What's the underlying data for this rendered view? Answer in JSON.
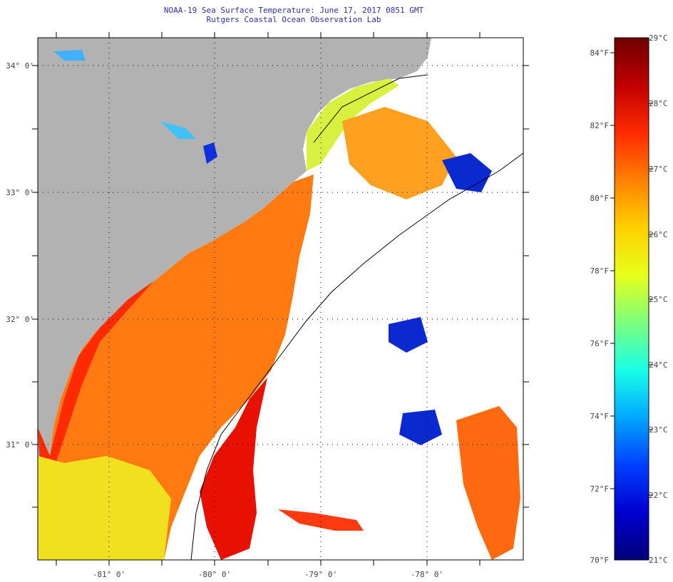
{
  "title": {
    "line1": "NOAA-19 Sea Surface Temperature:  June 17, 2017 0851 GMT",
    "line2": "Rutgers Coastal Ocean Observation Lab"
  },
  "map": {
    "lat_labels": [
      "34° 0'",
      "33° 0'",
      "32° 0'",
      "31° 0'"
    ],
    "lon_labels": [
      "-81° 0'",
      "-80° 0'",
      "-79° 0'",
      "-78° 0'"
    ],
    "colors": {
      "land": "#b2b2b2",
      "cloud": "#ffffff",
      "frame": "#000000"
    }
  },
  "colorbar": {
    "fahrenheit_labels": [
      "84°F",
      "82°F",
      "80°F",
      "78°F",
      "76°F",
      "74°F",
      "72°F",
      "70°F"
    ],
    "celsius_labels": [
      "29°C",
      "28°C",
      "27°C",
      "26°C",
      "25°C",
      "24°C",
      "23°C",
      "22°C",
      "21°C"
    ],
    "gradient": [
      "#6e0000",
      "#c00000",
      "#ff2a00",
      "#ff8000",
      "#ffd000",
      "#e6ff1a",
      "#7dff7d",
      "#18ffe6",
      "#00a8ff",
      "#0040ff",
      "#0000d0",
      "#00007a"
    ]
  }
}
